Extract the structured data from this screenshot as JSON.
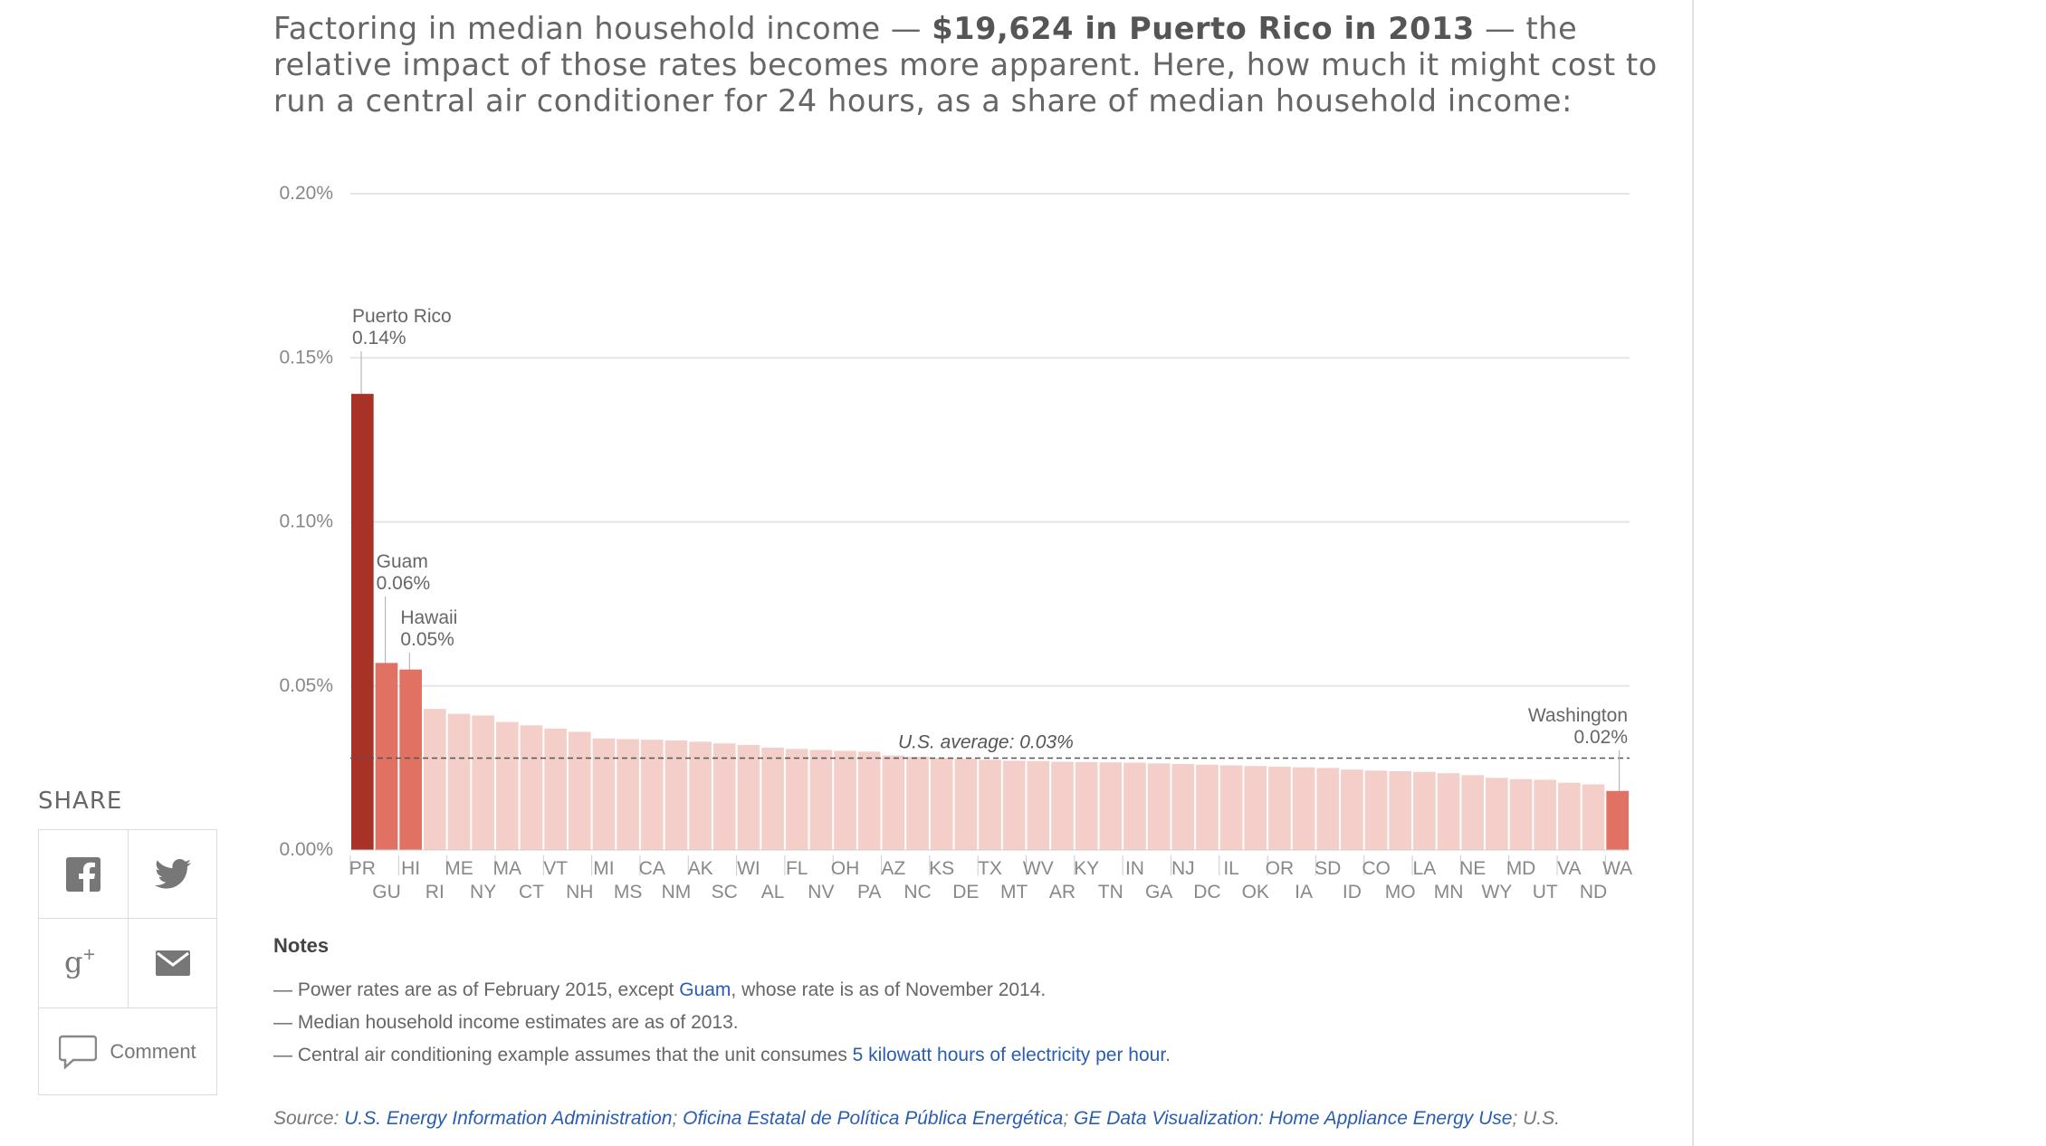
{
  "intro": {
    "before": "Factoring in median household income — ",
    "bold": "$19,624 in Puerto Rico in 2013",
    "after": " — the relative impact of those rates becomes more apparent. Here, how much it might cost to run a central air conditioner for 24 hours, as a share of median household income:"
  },
  "share": {
    "title": "SHARE",
    "icons": [
      "facebook-icon",
      "twitter-icon",
      "google-plus-icon",
      "email-icon"
    ],
    "comment_label": "Comment"
  },
  "notes": {
    "title": "Notes",
    "row1_before": "— Power rates are as of February 2015, except ",
    "row1_link": "Guam",
    "row1_after": ", whose rate is as of November 2014.",
    "row2": "— Median household income estimates are as of 2013.",
    "row3_before": "— Central air conditioning example assumes that the unit consumes ",
    "row3_link": "5 kilowatt hours of electricity per hour",
    "row3_after": "."
  },
  "source": {
    "label": "Source: ",
    "link1": "U.S. Energy Information Administration",
    "sep1": "; ",
    "link2": "Oficina Estatal de Política Pública Energética",
    "sep2": "; ",
    "link3": "GE Data Visualization: Home Appliance Energy Use",
    "tail": "; U.S."
  },
  "colors": {
    "highlight_dark": "#a93226",
    "highlight_mid": "#e07163",
    "bar_light": "#f4cfc9",
    "average_line": "#555555",
    "grid": "#e5e5e5",
    "link": "#2a5db0"
  },
  "chart_data": {
    "type": "bar",
    "title": "",
    "xlabel": "",
    "ylabel": "",
    "ylim": [
      0,
      0.2
    ],
    "yticks": [
      0,
      0.05,
      0.1,
      0.15,
      0.2
    ],
    "ytick_labels": [
      "0.00%",
      "0.05%",
      "0.10%",
      "0.15%",
      "0.20%"
    ],
    "grid": true,
    "categories": [
      "PR",
      "GU",
      "HI",
      "RI",
      "ME",
      "NY",
      "MA",
      "CT",
      "VT",
      "NH",
      "MI",
      "MS",
      "CA",
      "NM",
      "AK",
      "SC",
      "WI",
      "AL",
      "FL",
      "NV",
      "OH",
      "PA",
      "AZ",
      "NC",
      "KS",
      "DE",
      "TX",
      "MT",
      "WV",
      "AR",
      "KY",
      "TN",
      "IN",
      "GA",
      "NJ",
      "DC",
      "IL",
      "OK",
      "OR",
      "IA",
      "SD",
      "ID",
      "CO",
      "MO",
      "LA",
      "MN",
      "NE",
      "WY",
      "MD",
      "UT",
      "VA",
      "ND",
      "WA"
    ],
    "values": [
      0.139,
      0.057,
      0.055,
      0.043,
      0.0415,
      0.041,
      0.039,
      0.038,
      0.037,
      0.036,
      0.034,
      0.0338,
      0.0336,
      0.0334,
      0.033,
      0.0325,
      0.032,
      0.0312,
      0.0308,
      0.0305,
      0.0302,
      0.03,
      0.0288,
      0.0284,
      0.028,
      0.0278,
      0.0275,
      0.0272,
      0.0271,
      0.0269,
      0.0268,
      0.0267,
      0.0266,
      0.0264,
      0.0262,
      0.026,
      0.0258,
      0.0256,
      0.0254,
      0.0252,
      0.025,
      0.0245,
      0.0242,
      0.024,
      0.0238,
      0.0234,
      0.0228,
      0.022,
      0.0216,
      0.0214,
      0.0205,
      0.02,
      0.018
    ],
    "highlight": {
      "PR": "dark",
      "GU": "mid",
      "HI": "mid",
      "WA": "mid"
    },
    "average": {
      "value": 0.028,
      "label": "U.S. average: 0.03%"
    },
    "annotations": [
      {
        "category": "PR",
        "name": "Puerto Rico",
        "value_label": "0.14%"
      },
      {
        "category": "GU",
        "name": "Guam",
        "value_label": "0.06%"
      },
      {
        "category": "HI",
        "name": "Hawaii",
        "value_label": "0.05%"
      },
      {
        "category": "WA",
        "name": "Washington",
        "value_label": "0.02%",
        "align": "right"
      }
    ]
  }
}
